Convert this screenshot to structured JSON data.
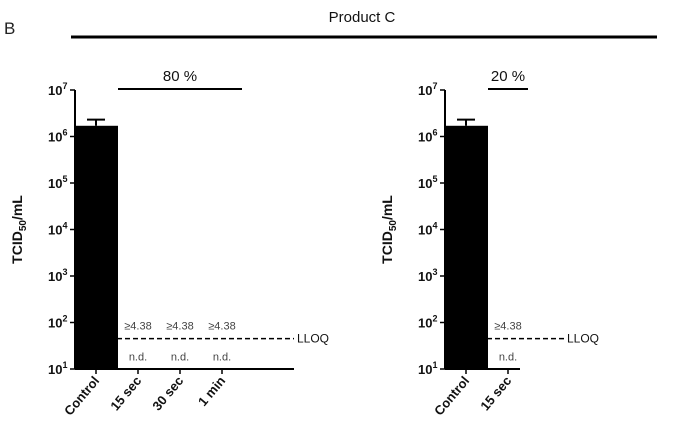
{
  "figure": {
    "panel_letter": "B",
    "header": "Product C"
  },
  "chart_data": [
    {
      "type": "bar",
      "ylabel_main": "TCID",
      "ylabel_sub": "50",
      "ylabel_tail": "/mL",
      "yscale": "log",
      "ylim": [
        10,
        10000000
      ],
      "y_tick_exponents": [
        1,
        2,
        3,
        4,
        5,
        6,
        7
      ],
      "y_tick_base": "10",
      "categories": [
        "Control",
        "15 sec",
        "30 sec",
        "1 min"
      ],
      "values": [
        1700000,
        null,
        null,
        null
      ],
      "error_upper": [
        2300000,
        null,
        null,
        null
      ],
      "bar_color": "#000000",
      "lloq": {
        "value": 45,
        "label": "LLOQ"
      },
      "annotations_above": [
        "",
        "≥4.38",
        "≥4.38",
        "≥4.38"
      ],
      "annotations_below": [
        "",
        "n.d.",
        "n.d.",
        "n.d."
      ],
      "concentration": {
        "label": "80 %",
        "span_from": 1,
        "span_to": 3
      }
    },
    {
      "type": "bar",
      "ylabel_main": "TCID",
      "ylabel_sub": "50",
      "ylabel_tail": "/mL",
      "yscale": "log",
      "ylim": [
        10,
        10000000
      ],
      "y_tick_exponents": [
        1,
        2,
        3,
        4,
        5,
        6,
        7
      ],
      "y_tick_base": "10",
      "categories": [
        "Control",
        "15 sec"
      ],
      "values": [
        1700000,
        null
      ],
      "error_upper": [
        2300000,
        null
      ],
      "bar_color": "#000000",
      "lloq": {
        "value": 45,
        "label": "LLOQ"
      },
      "annotations_above": [
        "",
        "≥4.38"
      ],
      "annotations_below": [
        "",
        "n.d."
      ],
      "concentration": {
        "label": "20 %",
        "span_from": 1,
        "span_to": 1
      }
    }
  ]
}
